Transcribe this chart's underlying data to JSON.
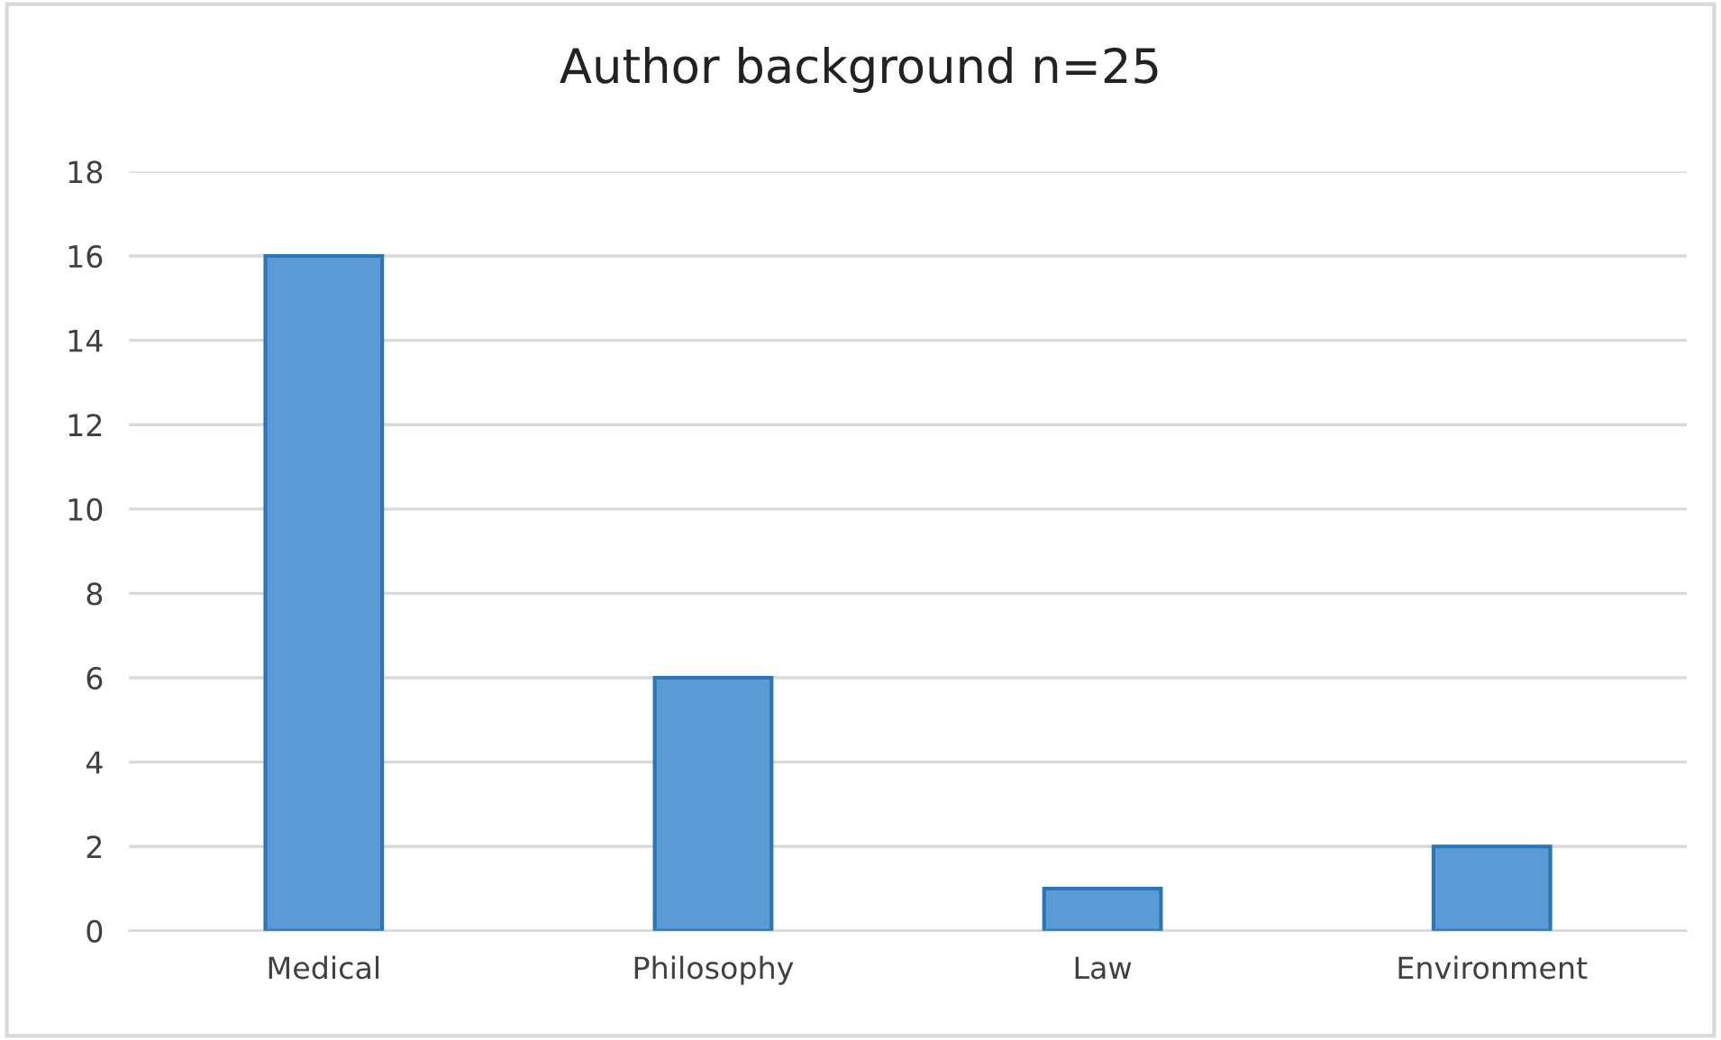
{
  "chart_data": {
    "type": "bar",
    "title": "Author background n=25",
    "categories": [
      "Medical",
      "Philosophy",
      "Law",
      "Environment"
    ],
    "values": [
      16,
      6,
      1,
      2
    ],
    "color": "#5b9bd5",
    "ylim": [
      0,
      18
    ],
    "yticks": [
      0,
      2,
      4,
      6,
      8,
      10,
      12,
      14,
      16,
      18
    ],
    "grid": "y"
  }
}
